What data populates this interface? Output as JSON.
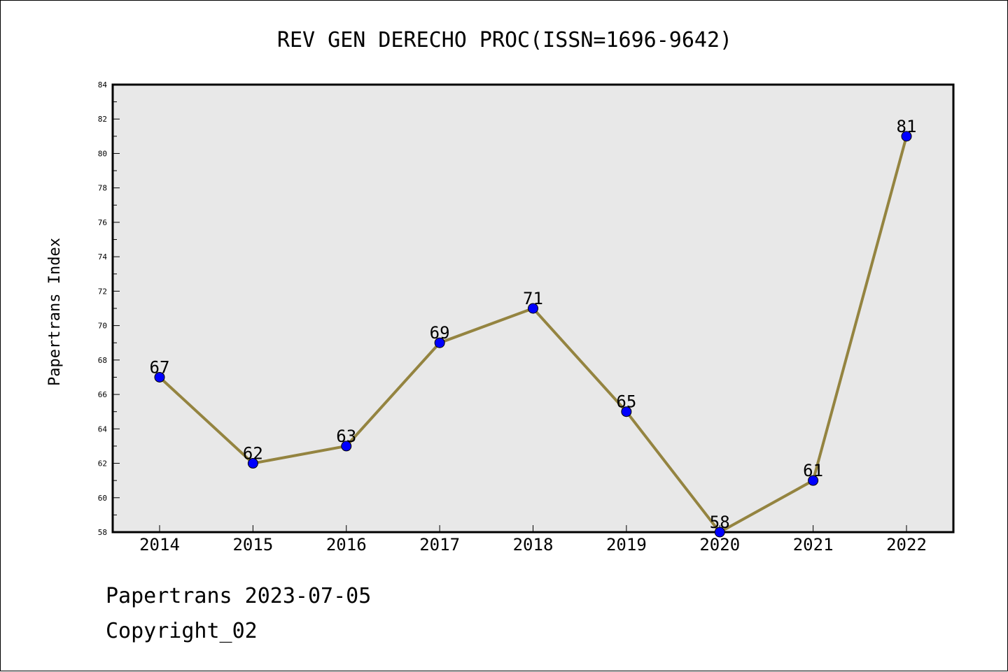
{
  "chart_data": {
    "type": "line",
    "title": "REV GEN DERECHO PROC(ISSN=1696-9642)",
    "xlabel": "",
    "ylabel": "Papertrans Index",
    "categories": [
      "2014",
      "2015",
      "2016",
      "2017",
      "2018",
      "2019",
      "2020",
      "2021",
      "2022"
    ],
    "series": [
      {
        "values": [
          67,
          62,
          63,
          69,
          71,
          65,
          58,
          61,
          81
        ]
      }
    ],
    "ylim": [
      58,
      84
    ],
    "yticks": [
      58,
      60,
      62,
      64,
      66,
      68,
      70,
      72,
      74,
      76,
      78,
      80,
      82,
      84
    ],
    "grid": false,
    "legend": "none",
    "data_labels": true,
    "colors": {
      "line": "#948440",
      "marker": "#0000ff",
      "plot_background": "#e8e8e8"
    }
  },
  "footer": {
    "date_text": "Papertrans 2023-07-05",
    "copyright_text": "Copyright_02"
  }
}
